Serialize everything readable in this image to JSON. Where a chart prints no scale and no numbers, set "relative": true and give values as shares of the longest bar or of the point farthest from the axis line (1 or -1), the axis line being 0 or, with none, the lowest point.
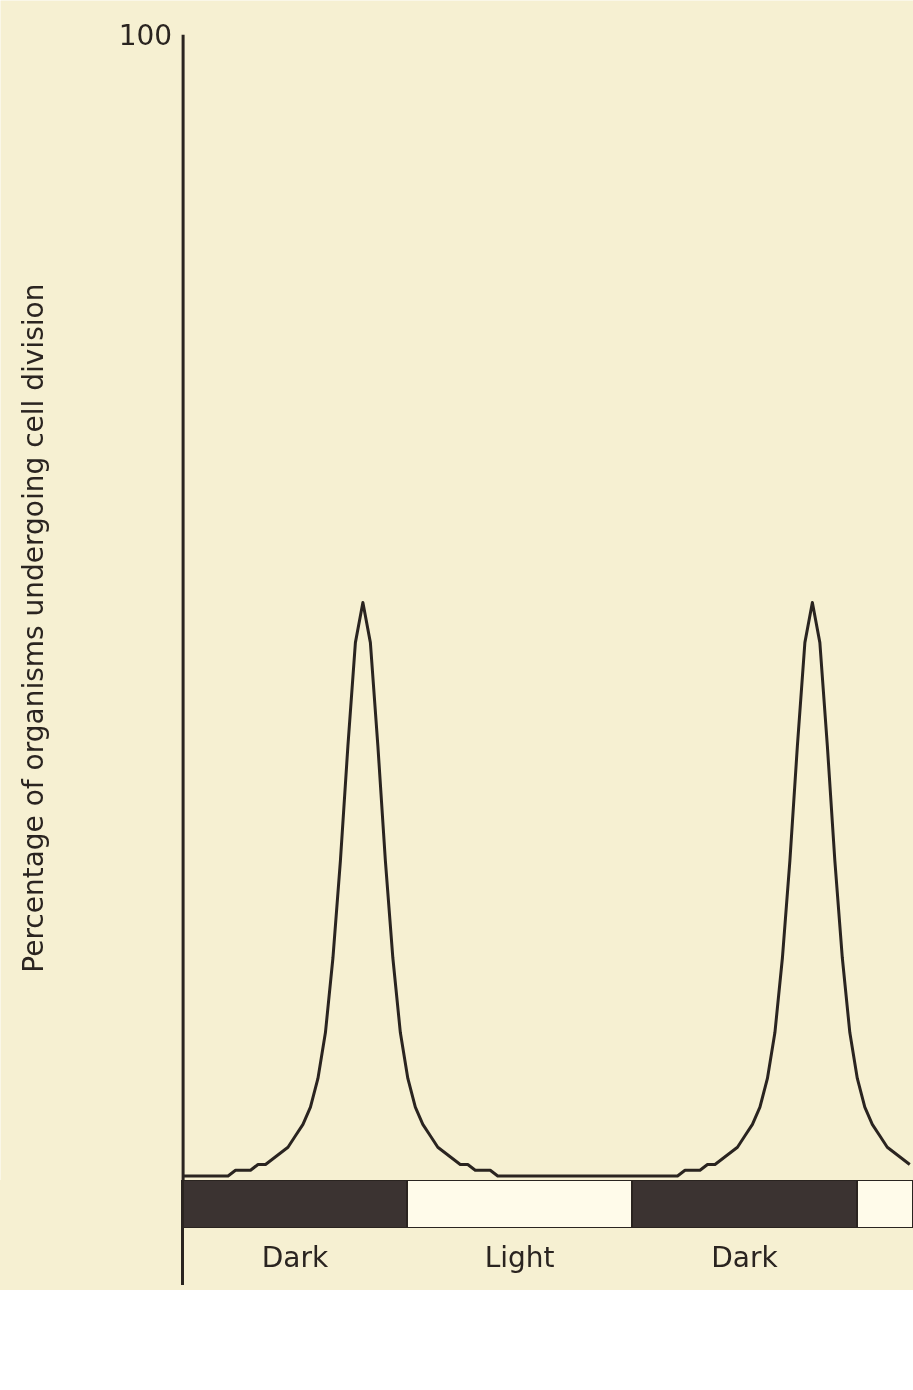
{
  "chart_data": {
    "type": "line",
    "relative": true,
    "ylabel": "Percentage of organisms undergoing cell division",
    "annotations": [
      "100",
      "Dark",
      "Light",
      "Dark"
    ],
    "grid": false,
    "marker": "none",
    "line_style": "solid",
    "categories": [
      null,
      null,
      null,
      null,
      null,
      null,
      null,
      null,
      null,
      null,
      null,
      null,
      null,
      null,
      null,
      null,
      null,
      null,
      null,
      null,
      null,
      null,
      null,
      null,
      null,
      null,
      null,
      null,
      null,
      null,
      null,
      null,
      null,
      null,
      null,
      null,
      null,
      null,
      null,
      null,
      null,
      null,
      null,
      null,
      null,
      null,
      null,
      null,
      null,
      null,
      null,
      null,
      null,
      null,
      null,
      null,
      null,
      null,
      null,
      null,
      null,
      null,
      null,
      null,
      null,
      null,
      null,
      null,
      null,
      null,
      null,
      null,
      null,
      null,
      null,
      null,
      null,
      null,
      null,
      null,
      null,
      null,
      null,
      null,
      null,
      null,
      null,
      null,
      null,
      null,
      null,
      null,
      null,
      null,
      null,
      null,
      null,
      null
    ],
    "series": [
      {
        "color": "#2a2420",
        "values": [
          0,
          0,
          0,
          0,
          0,
          0,
          0,
          0.01,
          0.01,
          0.01,
          0.02,
          0.02,
          0.03,
          0.04,
          0.05,
          0.07,
          0.09,
          0.12,
          0.17,
          0.25,
          0.38,
          0.55,
          0.75,
          0.93,
          1,
          0.93,
          0.75,
          0.55,
          0.38,
          0.25,
          0.17,
          0.12,
          0.09,
          0.07,
          0.05,
          0.04,
          0.03,
          0.02,
          0.02,
          0.01,
          0.01,
          0.01,
          0,
          0,
          0,
          0,
          0,
          0,
          0,
          0,
          0,
          0,
          0,
          0,
          0,
          0,
          0,
          0,
          0,
          0,
          0,
          0,
          0,
          0,
          0,
          0,
          0,
          0.01,
          0.01,
          0.01,
          0.02,
          0.02,
          0.03,
          0.04,
          0.05,
          0.07,
          0.09,
          0.12,
          0.17,
          0.25,
          0.38,
          0.55,
          0.75,
          0.93,
          1,
          0.93,
          0.75,
          0.55,
          0.38,
          0.25,
          0.17,
          0.12,
          0.09,
          0.07,
          0.05,
          0.04,
          0.03,
          0.02
        ]
      }
    ]
  }
}
